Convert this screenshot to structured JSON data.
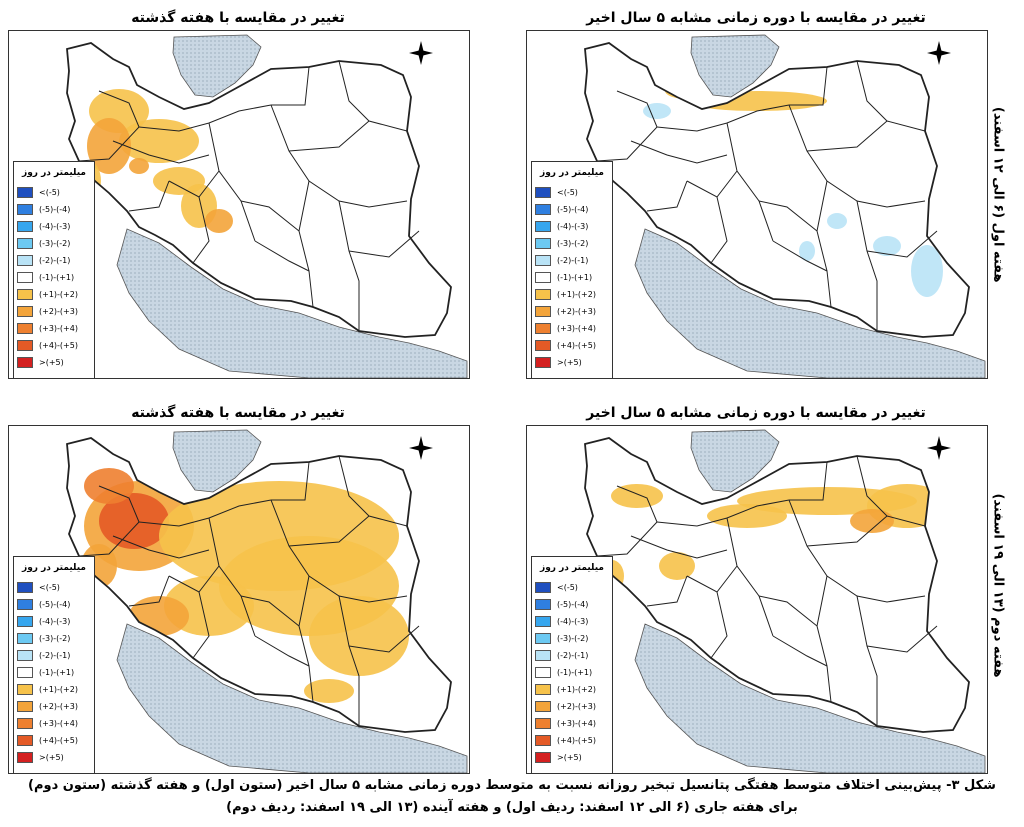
{
  "panels": [
    {
      "id": "top-left",
      "title": "تغییر در مقایسه با هفته گذشته"
    },
    {
      "id": "top-right",
      "title": "تغییر در مقایسه با دوره زمانی مشابه ۵ سال اخیر"
    },
    {
      "id": "bottom-left",
      "title": "تغییر در مقایسه با هفته گذشته"
    },
    {
      "id": "bottom-right",
      "title": "تغییر در مقایسه با دوره زمانی مشابه ۵ سال اخیر"
    }
  ],
  "row_labels": {
    "row1": "هفته اول (۶ الی ۱۲ اسفند)",
    "row2": "هفته دوم (۱۳ الی ۱۹ اسفند)"
  },
  "legend": {
    "title": "میلیمتر در روز",
    "items": [
      {
        "label": "<(-5)",
        "color": "#1f4fbf"
      },
      {
        "label": "(-5)-(-4)",
        "color": "#2f7fe0"
      },
      {
        "label": "(-4)-(-3)",
        "color": "#36a6ee"
      },
      {
        "label": "(-3)-(-2)",
        "color": "#6cc9f2"
      },
      {
        "label": "(-2)-(-1)",
        "color": "#b9e3f6"
      },
      {
        "label": "(-1)-(+1)",
        "color": "#ffffff"
      },
      {
        "label": "(+1)-(+2)",
        "color": "#f6c24a"
      },
      {
        "label": "(+2)-(+3)",
        "color": "#f3a43a"
      },
      {
        "label": "(+3)-(+4)",
        "color": "#ee8030"
      },
      {
        "label": "(+4)-(+5)",
        "color": "#e45a26"
      },
      {
        "label": ">(+5)",
        "color": "#d42020"
      }
    ]
  },
  "caption": {
    "line1": "شکل ۳- پیش‌بینی اختلاف متوسط هفتگی پتانسیل تبخیر روزانه نسبت به متوسط دوره زمانی مشابه ۵ سال اخیر (ستون اول) و هفته گذشته (ستون دوم)",
    "line2": "برای هفته جاری (۶ الی ۱۲ اسفند: ردیف اول) و هفته آینده (۱۳ الی ۱۹ اسفند: ردیف دوم)"
  },
  "colors": {
    "water": "#c9d7e3",
    "land_outside": "#ffffff",
    "iran": "#ffffff",
    "border": "#222222"
  }
}
